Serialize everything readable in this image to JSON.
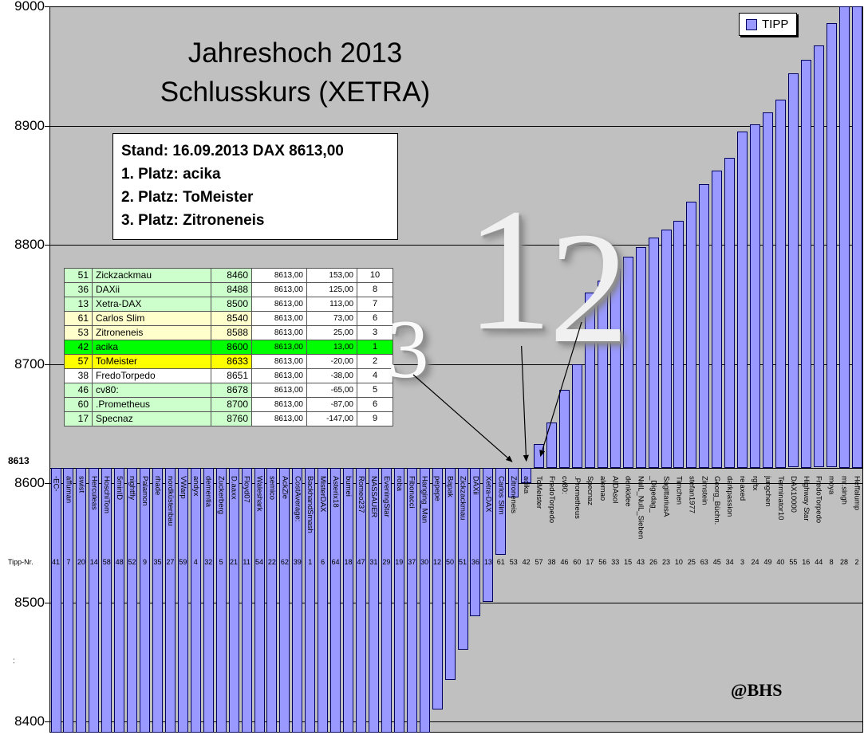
{
  "title": {
    "line1": "Jahreshoch 2013",
    "line2": "Schlusskurs (XETRA)"
  },
  "legend": {
    "label": "TIPP"
  },
  "status_box": {
    "line1": "Stand: 16.09.2013 DAX 8613,00",
    "line2": "1. Platz: acika",
    "line3": "2. Platz: ToMeister",
    "line4": "3. Platz: Zitroneneis"
  },
  "watermark": "@BHS",
  "annotations": {
    "marker1": {
      "label": "1",
      "points_to": "acika"
    },
    "marker2": {
      "label": "2",
      "points_to": "ToMeister"
    },
    "marker3": {
      "label": "3",
      "points_to": "Zitroneneis"
    }
  },
  "axis": {
    "y_values": [
      9000,
      8900,
      8800,
      8700,
      8600,
      8500,
      8400
    ],
    "current_level_label": "8613",
    "x_label": "Tipp-Nr.",
    "x_label2": ":"
  },
  "colors": {
    "bar_fill": "#9999ff",
    "bar_border": "#000060",
    "plot_bg": "#c0c0c0",
    "highlight_green": "#00ff00",
    "highlight_yellow": "#ffff00",
    "pale_green": "#ccffcc",
    "pale_yellow": "#ffffcc"
  },
  "ranking_table": {
    "rows": [
      {
        "nr": "51",
        "name": "Zickzackmau",
        "tip": "8460",
        "dax": "8613,00",
        "diff": "153,00",
        "rank": "10",
        "bg": "#ccffcc",
        "bg2": "#ffffff"
      },
      {
        "nr": "36",
        "name": "DAXii",
        "tip": "8488",
        "dax": "8613,00",
        "diff": "125,00",
        "rank": "8",
        "bg": "#ccffcc",
        "bg2": "#ffffff"
      },
      {
        "nr": "13",
        "name": "Xetra-DAX",
        "tip": "8500",
        "dax": "8613,00",
        "diff": "113,00",
        "rank": "7",
        "bg": "#ccffcc",
        "bg2": "#ffffff"
      },
      {
        "nr": "61",
        "name": "Carlos Slim",
        "tip": "8540",
        "dax": "8613,00",
        "diff": "73,00",
        "rank": "6",
        "bg": "#ffffcc",
        "bg2": "#ffffff"
      },
      {
        "nr": "53",
        "name": "Zitroneneis",
        "tip": "8588",
        "dax": "8613,00",
        "diff": "25,00",
        "rank": "3",
        "bg": "#ffffcc",
        "bg2": "#ffffff"
      },
      {
        "nr": "42",
        "name": "acika",
        "tip": "8600",
        "dax": "8613,00",
        "diff": "13,00",
        "rank": "1",
        "bg": "#00ff00",
        "bg2": "#00ff00"
      },
      {
        "nr": "57",
        "name": "ToMeister",
        "tip": "8633",
        "dax": "8613,00",
        "diff": "-20,00",
        "rank": "2",
        "bg": "#ffff00",
        "bg2": "#ffffff"
      },
      {
        "nr": "38",
        "name": "FredoTorpedo",
        "tip": "8651",
        "dax": "8613,00",
        "diff": "-38,00",
        "rank": "4",
        "bg": "#ffffff",
        "bg2": "#ffffff"
      },
      {
        "nr": "46",
        "name": "cv80:",
        "tip": "8678",
        "dax": "8613,00",
        "diff": "-65,00",
        "rank": "5",
        "bg": "#ccffcc",
        "bg2": "#ffffff"
      },
      {
        "nr": "60",
        "name": ".Prometheus",
        "tip": "8700",
        "dax": "8613,00",
        "diff": "-87,00",
        "rank": "6",
        "bg": "#ccffcc",
        "bg2": "#ffffff"
      },
      {
        "nr": "17",
        "name": "Specnaz",
        "tip": "8760",
        "dax": "8613,00",
        "diff": "-147,00",
        "rank": "9",
        "bg": "#ccffcc",
        "bg2": "#ffffff"
      }
    ]
  },
  "chart_data": {
    "type": "bar",
    "title": "Jahreshoch 2013 Schlusskurs (XETRA)",
    "series_name": "TIPP",
    "baseline": 8613,
    "ylim": [
      8400,
      9000
    ],
    "note": "Bars hang from / rise off the 8613 crossing line. value null = tip below the 8400 axis minimum (bar clipped to chart bottom). Values not shown in the ranking table are estimated from bar heights.",
    "bars": [
      {
        "name": "-EC-",
        "tipp_nr": 41,
        "value": null
      },
      {
        "name": "affuman",
        "tipp_nr": 7,
        "value": null
      },
      {
        "name": "swist",
        "tipp_nr": 20,
        "value": null
      },
      {
        "name": "Herculeas",
        "tipp_nr": 14,
        "value": null
      },
      {
        "name": "HoschiTom",
        "tipp_nr": 58,
        "value": null
      },
      {
        "name": "5minID",
        "tipp_nr": 48,
        "value": null
      },
      {
        "name": "nightfly",
        "tipp_nr": 52,
        "value": null
      },
      {
        "name": "Palamon",
        "tipp_nr": 9,
        "value": null
      },
      {
        "name": "rhade",
        "tipp_nr": 35,
        "value": null
      },
      {
        "name": "nordküstenbau",
        "tipp_nr": 27,
        "value": null
      },
      {
        "name": "VWarp",
        "tipp_nr": 59,
        "value": null
      },
      {
        "name": "andyx",
        "tipp_nr": 4,
        "value": null
      },
      {
        "name": "dementia",
        "tipp_nr": 32,
        "value": null
      },
      {
        "name": "Zuckerberg",
        "tipp_nr": 5,
        "value": null
      },
      {
        "name": "D.aaxx",
        "tipp_nr": 21,
        "value": null
      },
      {
        "name": "Floyd07",
        "tipp_nr": 11,
        "value": null
      },
      {
        "name": "Waleshark",
        "tipp_nr": 54,
        "value": null
      },
      {
        "name": "semico",
        "tipp_nr": 22,
        "value": null
      },
      {
        "name": "AckZie",
        "tipp_nr": 62,
        "value": null
      },
      {
        "name": "CostAverage:",
        "tipp_nr": 39,
        "value": null
      },
      {
        "name": "BackhandSmash",
        "tipp_nr": 1,
        "value": null
      },
      {
        "name": "MisterDAX",
        "tipp_nr": 6,
        "value": null
      },
      {
        "name": "Asterix18",
        "tipp_nr": 64,
        "value": null
      },
      {
        "name": "bumei",
        "tipp_nr": 18,
        "value": null
      },
      {
        "name": "Romeo237",
        "tipp_nr": 47,
        "value": null
      },
      {
        "name": "NASSAUER",
        "tipp_nr": 31,
        "value": null
      },
      {
        "name": "EveningStar",
        "tipp_nr": 29,
        "value": null
      },
      {
        "name": "roba",
        "tipp_nr": 19,
        "value": null
      },
      {
        "name": "Fibonacci",
        "tipp_nr": 37,
        "value": null
      },
      {
        "name": "Hanging_Man",
        "tipp_nr": 30,
        "value": null
      },
      {
        "name": "pepepe",
        "tipp_nr": 12,
        "value": 8410
      },
      {
        "name": "Bapak",
        "tipp_nr": 50,
        "value": 8435
      },
      {
        "name": "Zickzackmau",
        "tipp_nr": 51,
        "value": 8460
      },
      {
        "name": "DAXii",
        "tipp_nr": 36,
        "value": 8488
      },
      {
        "name": "Xetra-DAX",
        "tipp_nr": 13,
        "value": 8500
      },
      {
        "name": "Carlos Slim",
        "tipp_nr": 61,
        "value": 8540
      },
      {
        "name": "Zitroneneis",
        "tipp_nr": 53,
        "value": 8588
      },
      {
        "name": "acika",
        "tipp_nr": 42,
        "value": 8600
      },
      {
        "name": "ToMeister",
        "tipp_nr": 57,
        "value": 8633
      },
      {
        "name": "FredoTorpedo",
        "tipp_nr": 38,
        "value": 8651
      },
      {
        "name": "cv80:",
        "tipp_nr": 46,
        "value": 8678
      },
      {
        "name": ".Prometheus",
        "tipp_nr": 60,
        "value": 8700
      },
      {
        "name": "Specnaz",
        "tipp_nr": 17,
        "value": 8760
      },
      {
        "name": "alemao",
        "tipp_nr": 56,
        "value": 8770
      },
      {
        "name": "AIDAsol",
        "tipp_nr": 33,
        "value": 8780
      },
      {
        "name": "denkidee",
        "tipp_nr": 15,
        "value": 8790
      },
      {
        "name": "NulL_NulL_Sieben",
        "tipp_nr": 43,
        "value": 8798
      },
      {
        "name": "_Digedag_",
        "tipp_nr": 26,
        "value": 8806
      },
      {
        "name": "SagittariusA",
        "tipp_nr": 23,
        "value": 8813
      },
      {
        "name": "Timchen",
        "tipp_nr": 10,
        "value": 8820
      },
      {
        "name": "stefan1977",
        "tipp_nr": 25,
        "value": 8836
      },
      {
        "name": "Zirnstein",
        "tipp_nr": 63,
        "value": 8851
      },
      {
        "name": "Georg_Büchn.",
        "tipp_nr": 45,
        "value": 8862
      },
      {
        "name": "darkpassion",
        "tipp_nr": 34,
        "value": 8873
      },
      {
        "name": "relaxed",
        "tipp_nr": 3,
        "value": 8895
      },
      {
        "name": "rgftx",
        "tipp_nr": 24,
        "value": 8901
      },
      {
        "name": "jungchen",
        "tipp_nr": 49,
        "value": 8911
      },
      {
        "name": "Terminator10",
        "tipp_nr": 40,
        "value": 8922
      },
      {
        "name": "DAX10000",
        "tipp_nr": 55,
        "value": 8944
      },
      {
        "name": "Highway Star",
        "tipp_nr": 16,
        "value": 8955
      },
      {
        "name": "FredoTorpedo",
        "tipp_nr": 44,
        "value": 8967
      },
      {
        "name": "moya",
        "tipp_nr": 8,
        "value": 8986
      },
      {
        "name": "mr.singh",
        "tipp_nr": 28,
        "value": 9002
      },
      {
        "name": "Heffalump",
        "tipp_nr": 2,
        "value": 9015
      }
    ]
  }
}
